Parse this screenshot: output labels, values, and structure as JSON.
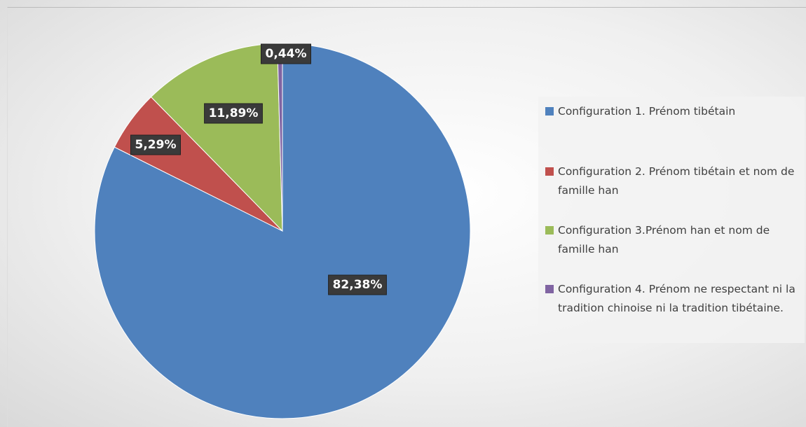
{
  "chart_data": {
    "type": "pie",
    "categories": [
      "Configuration 1. Prénom tibétain",
      "Configuration 2. Prénom tibétain et nom de famille han",
      "Configuration 3.Prénom han et nom de famille han",
      "Configuration 4. Prénom ne respectant ni la tradition chinoise ni la tradition tibétaine."
    ],
    "values": [
      82.38,
      5.29,
      11.89,
      0.44
    ],
    "value_labels": [
      "82,38%",
      "5,29%",
      "11,89%",
      "0,44%"
    ],
    "colors": [
      "#4f81bd",
      "#c0504d",
      "#9bbb59",
      "#8064a2"
    ],
    "legend": "right"
  }
}
